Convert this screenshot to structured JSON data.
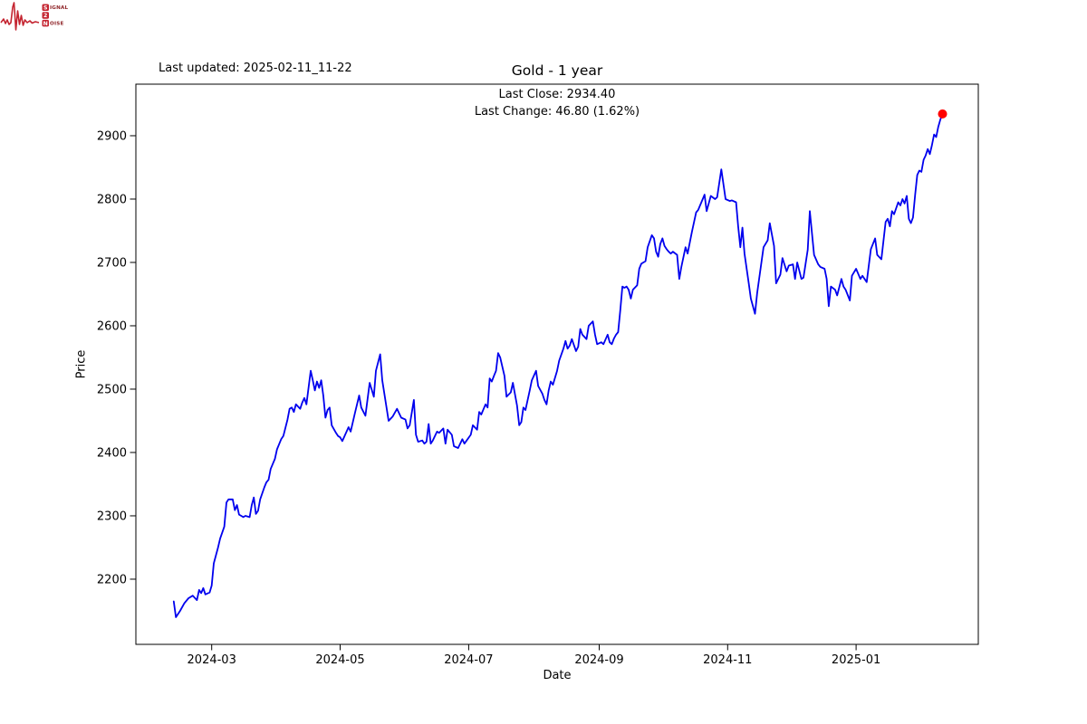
{
  "header": {
    "last_updated": "Last updated: 2025-02-11_11-22"
  },
  "logo": {
    "s": "S",
    "ignal": "IGNAL",
    "two": "2",
    "n": "N",
    "oise": "OISE",
    "red": "#c42430",
    "dark_red": "#8f2428"
  },
  "chart_data": {
    "type": "line",
    "title": "Gold - 1 year",
    "subtitle_close": "Last Close: 2934.40",
    "subtitle_change": "Last Change: 46.80 (1.62%)",
    "xlabel": "Date",
    "ylabel": "Price",
    "legend": "none",
    "grid": false,
    "line_color": "#0000ee",
    "marker_color": "#ff0000",
    "axis_color": "#000000",
    "x_unit": "days since 2024-02-12",
    "xlim_days": [
      -18,
      382
    ],
    "ylim": [
      2097.1,
      2981.4
    ],
    "x_ticks": [
      {
        "day": 18,
        "label": "2024-03"
      },
      {
        "day": 79,
        "label": "2024-05"
      },
      {
        "day": 140,
        "label": "2024-07"
      },
      {
        "day": 202,
        "label": "2024-09"
      },
      {
        "day": 263,
        "label": "2024-11"
      },
      {
        "day": 324,
        "label": "2025-01"
      }
    ],
    "y_ticks": [
      2200,
      2300,
      2400,
      2500,
      2600,
      2700,
      2800,
      2900
    ],
    "last_point": {
      "date": "2025-02-11",
      "close": 2934.4,
      "change": 46.8,
      "change_pct": 1.62
    },
    "points": [
      [
        0,
        2165
      ],
      [
        1,
        2140
      ],
      [
        3,
        2150
      ],
      [
        5,
        2162
      ],
      [
        7,
        2170
      ],
      [
        9,
        2174
      ],
      [
        11,
        2167
      ],
      [
        12,
        2183
      ],
      [
        13,
        2178
      ],
      [
        14,
        2186
      ],
      [
        15,
        2176
      ],
      [
        17,
        2179
      ],
      [
        18,
        2190
      ],
      [
        19,
        2225
      ],
      [
        21,
        2250
      ],
      [
        22,
        2264
      ],
      [
        24,
        2283
      ],
      [
        25,
        2321
      ],
      [
        26,
        2326
      ],
      [
        28,
        2326
      ],
      [
        29,
        2309
      ],
      [
        30,
        2317
      ],
      [
        31,
        2302
      ],
      [
        32,
        2300
      ],
      [
        33,
        2298
      ],
      [
        34,
        2300
      ],
      [
        36,
        2298
      ],
      [
        37,
        2317
      ],
      [
        38,
        2329
      ],
      [
        39,
        2303
      ],
      [
        40,
        2308
      ],
      [
        41,
        2326
      ],
      [
        43,
        2345
      ],
      [
        44,
        2353
      ],
      [
        45,
        2357
      ],
      [
        46,
        2374
      ],
      [
        48,
        2390
      ],
      [
        49,
        2405
      ],
      [
        51,
        2421
      ],
      [
        52,
        2426
      ],
      [
        54,
        2452
      ],
      [
        55,
        2469
      ],
      [
        56,
        2471
      ],
      [
        57,
        2464
      ],
      [
        58,
        2476
      ],
      [
        60,
        2469
      ],
      [
        61,
        2479
      ],
      [
        62,
        2486
      ],
      [
        63,
        2476
      ],
      [
        65,
        2529
      ],
      [
        66,
        2514
      ],
      [
        67,
        2498
      ],
      [
        68,
        2512
      ],
      [
        69,
        2502
      ],
      [
        70,
        2514
      ],
      [
        71,
        2490
      ],
      [
        72,
        2455
      ],
      [
        73,
        2467
      ],
      [
        74,
        2471
      ],
      [
        75,
        2443
      ],
      [
        77,
        2431
      ],
      [
        78,
        2426
      ],
      [
        79,
        2424
      ],
      [
        80,
        2418
      ],
      [
        83,
        2440
      ],
      [
        84,
        2433
      ],
      [
        86,
        2462
      ],
      [
        88,
        2490
      ],
      [
        89,
        2471
      ],
      [
        91,
        2458
      ],
      [
        93,
        2510
      ],
      [
        95,
        2488
      ],
      [
        96,
        2529
      ],
      [
        98,
        2555
      ],
      [
        99,
        2514
      ],
      [
        102,
        2450
      ],
      [
        104,
        2457
      ],
      [
        106,
        2469
      ],
      [
        108,
        2455
      ],
      [
        110,
        2452
      ],
      [
        111,
        2438
      ],
      [
        112,
        2443
      ],
      [
        114,
        2483
      ],
      [
        115,
        2428
      ],
      [
        116,
        2417
      ],
      [
        118,
        2419
      ],
      [
        119,
        2414
      ],
      [
        120,
        2417
      ],
      [
        121,
        2445
      ],
      [
        122,
        2414
      ],
      [
        123,
        2419
      ],
      [
        125,
        2433
      ],
      [
        126,
        2431
      ],
      [
        128,
        2438
      ],
      [
        129,
        2414
      ],
      [
        130,
        2436
      ],
      [
        132,
        2428
      ],
      [
        133,
        2410
      ],
      [
        135,
        2407
      ],
      [
        137,
        2421
      ],
      [
        138,
        2414
      ],
      [
        141,
        2428
      ],
      [
        142,
        2443
      ],
      [
        144,
        2436
      ],
      [
        145,
        2464
      ],
      [
        146,
        2460
      ],
      [
        148,
        2476
      ],
      [
        149,
        2471
      ],
      [
        150,
        2517
      ],
      [
        151,
        2512
      ],
      [
        152,
        2521
      ],
      [
        153,
        2529
      ],
      [
        154,
        2557
      ],
      [
        155,
        2550
      ],
      [
        157,
        2521
      ],
      [
        158,
        2488
      ],
      [
        160,
        2495
      ],
      [
        161,
        2510
      ],
      [
        163,
        2474
      ],
      [
        164,
        2443
      ],
      [
        165,
        2448
      ],
      [
        166,
        2471
      ],
      [
        167,
        2467
      ],
      [
        169,
        2498
      ],
      [
        170,
        2514
      ],
      [
        172,
        2529
      ],
      [
        173,
        2505
      ],
      [
        175,
        2493
      ],
      [
        176,
        2483
      ],
      [
        177,
        2476
      ],
      [
        178,
        2498
      ],
      [
        179,
        2512
      ],
      [
        180,
        2507
      ],
      [
        182,
        2529
      ],
      [
        183,
        2545
      ],
      [
        185,
        2564
      ],
      [
        186,
        2576
      ],
      [
        187,
        2564
      ],
      [
        188,
        2569
      ],
      [
        189,
        2579
      ],
      [
        191,
        2560
      ],
      [
        192,
        2567
      ],
      [
        193,
        2595
      ],
      [
        194,
        2586
      ],
      [
        196,
        2579
      ],
      [
        197,
        2600
      ],
      [
        199,
        2607
      ],
      [
        200,
        2586
      ],
      [
        201,
        2571
      ],
      [
        203,
        2574
      ],
      [
        204,
        2571
      ],
      [
        206,
        2586
      ],
      [
        207,
        2574
      ],
      [
        208,
        2571
      ],
      [
        209,
        2580
      ],
      [
        210,
        2586
      ],
      [
        211,
        2590
      ],
      [
        212,
        2625
      ],
      [
        213,
        2662
      ],
      [
        214,
        2660
      ],
      [
        215,
        2662
      ],
      [
        216,
        2657
      ],
      [
        217,
        2643
      ],
      [
        218,
        2657
      ],
      [
        220,
        2664
      ],
      [
        221,
        2690
      ],
      [
        222,
        2698
      ],
      [
        223,
        2700
      ],
      [
        224,
        2702
      ],
      [
        225,
        2724
      ],
      [
        227,
        2743
      ],
      [
        228,
        2738
      ],
      [
        229,
        2717
      ],
      [
        230,
        2709
      ],
      [
        231,
        2729
      ],
      [
        232,
        2738
      ],
      [
        233,
        2726
      ],
      [
        234,
        2721
      ],
      [
        235,
        2717
      ],
      [
        236,
        2714
      ],
      [
        237,
        2717
      ],
      [
        239,
        2712
      ],
      [
        240,
        2674
      ],
      [
        241,
        2693
      ],
      [
        243,
        2724
      ],
      [
        244,
        2714
      ],
      [
        246,
        2748
      ],
      [
        248,
        2779
      ],
      [
        249,
        2783
      ],
      [
        252,
        2807
      ],
      [
        253,
        2781
      ],
      [
        255,
        2805
      ],
      [
        257,
        2800
      ],
      [
        258,
        2803
      ],
      [
        260,
        2847
      ],
      [
        262,
        2800
      ],
      [
        264,
        2797
      ],
      [
        265,
        2798
      ],
      [
        267,
        2795
      ],
      [
        268,
        2757
      ],
      [
        269,
        2724
      ],
      [
        270,
        2755
      ],
      [
        271,
        2714
      ],
      [
        273,
        2667
      ],
      [
        274,
        2643
      ],
      [
        276,
        2619
      ],
      [
        277,
        2652
      ],
      [
        280,
        2724
      ],
      [
        282,
        2735
      ],
      [
        283,
        2762
      ],
      [
        285,
        2726
      ],
      [
        286,
        2667
      ],
      [
        288,
        2681
      ],
      [
        289,
        2707
      ],
      [
        291,
        2686
      ],
      [
        292,
        2695
      ],
      [
        294,
        2697
      ],
      [
        295,
        2674
      ],
      [
        296,
        2700
      ],
      [
        298,
        2674
      ],
      [
        299,
        2676
      ],
      [
        301,
        2720
      ],
      [
        302,
        2781
      ],
      [
        304,
        2712
      ],
      [
        306,
        2697
      ],
      [
        307,
        2693
      ],
      [
        309,
        2690
      ],
      [
        310,
        2674
      ],
      [
        311,
        2631
      ],
      [
        312,
        2662
      ],
      [
        314,
        2657
      ],
      [
        315,
        2648
      ],
      [
        317,
        2674
      ],
      [
        318,
        2662
      ],
      [
        319,
        2657
      ],
      [
        321,
        2640
      ],
      [
        322,
        2679
      ],
      [
        324,
        2690
      ],
      [
        326,
        2674
      ],
      [
        327,
        2679
      ],
      [
        329,
        2669
      ],
      [
        331,
        2721
      ],
      [
        333,
        2738
      ],
      [
        334,
        2712
      ],
      [
        336,
        2705
      ],
      [
        338,
        2764
      ],
      [
        339,
        2769
      ],
      [
        340,
        2757
      ],
      [
        341,
        2781
      ],
      [
        342,
        2776
      ],
      [
        344,
        2795
      ],
      [
        345,
        2790
      ],
      [
        346,
        2800
      ],
      [
        347,
        2793
      ],
      [
        348,
        2805
      ],
      [
        349,
        2769
      ],
      [
        350,
        2762
      ],
      [
        351,
        2771
      ],
      [
        352,
        2807
      ],
      [
        353,
        2838
      ],
      [
        354,
        2845
      ],
      [
        355,
        2843
      ],
      [
        356,
        2862
      ],
      [
        357,
        2869
      ],
      [
        358,
        2879
      ],
      [
        359,
        2871
      ],
      [
        360,
        2885
      ],
      [
        361,
        2902
      ],
      [
        362,
        2898
      ],
      [
        363,
        2914
      ],
      [
        364,
        2926
      ],
      [
        365,
        2934.4
      ]
    ]
  }
}
